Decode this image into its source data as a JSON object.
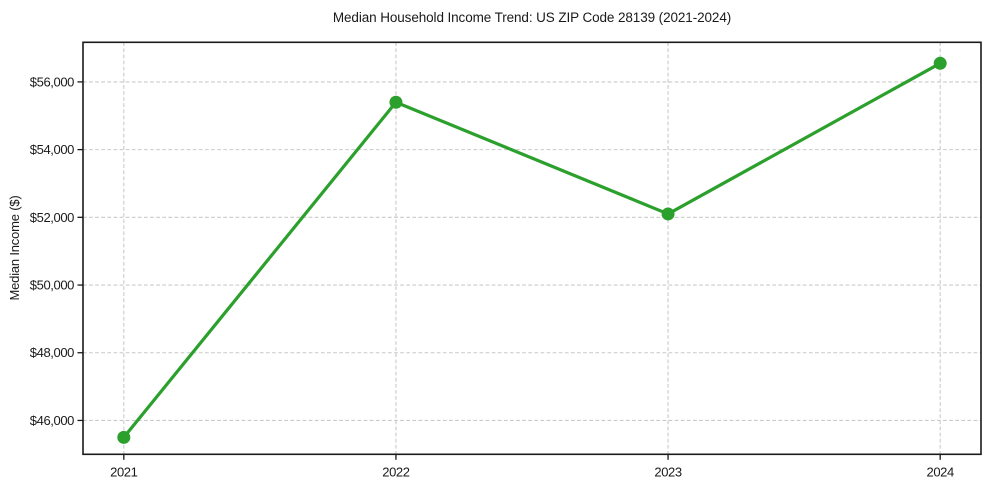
{
  "window": {
    "background_color": "#ffffff"
  },
  "chart_data": {
    "type": "line",
    "title": "Median Household Income Trend: US ZIP Code 28139 (2021-2024)",
    "xlabel": "",
    "ylabel": "Median Income ($)",
    "x": [
      2021,
      2022,
      2023,
      2024
    ],
    "x_tick_labels": [
      "2021",
      "2022",
      "2023",
      "2024"
    ],
    "series": [
      {
        "name": "median-household-income",
        "values": [
          45500,
          55400,
          52100,
          56550
        ],
        "color": "#2ca02c",
        "marker": "circle",
        "marker_size": 6.5,
        "line_width": 3.2
      }
    ],
    "y_ticks": [
      46000,
      48000,
      50000,
      52000,
      54000,
      56000
    ],
    "y_tick_labels": [
      "$46,000",
      "$48,000",
      "$50,000",
      "$52,000",
      "$54,000",
      "$56,000"
    ],
    "xlim": [
      2020.85,
      2024.15
    ],
    "ylim": [
      45000,
      57170
    ],
    "grid": true,
    "grid_style": "dashed",
    "legend_visible": false,
    "colors": {
      "grid": "#c9c9c9",
      "axis": "#1a1a1a",
      "text": "#1a1a1a",
      "plot_background": "#ffffff"
    }
  }
}
